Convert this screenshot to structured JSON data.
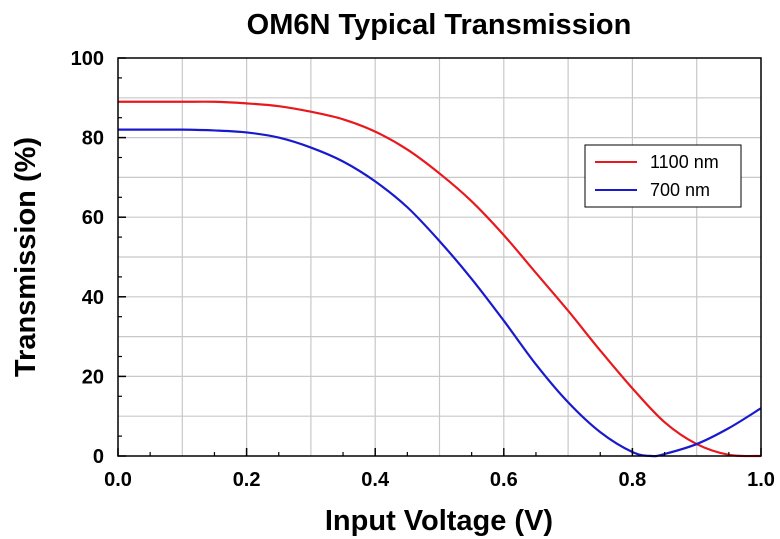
{
  "chart_data": {
    "type": "line",
    "title": "OM6N Typical Transmission",
    "xlabel": "Input Voltage (V)",
    "ylabel": "Transmission (%)",
    "xlim": [
      0.0,
      1.0
    ],
    "ylim": [
      0,
      100
    ],
    "xticks": [
      "0.0",
      "0.2",
      "0.4",
      "0.6",
      "0.8",
      "1.0"
    ],
    "yticks": [
      "0",
      "20",
      "40",
      "60",
      "80",
      "100"
    ],
    "grid": true,
    "legend_position": "right",
    "series": [
      {
        "name": "1100 nm",
        "color": "#e8191e",
        "x": [
          0.0,
          0.05,
          0.1,
          0.15,
          0.2,
          0.25,
          0.3,
          0.35,
          0.4,
          0.45,
          0.5,
          0.55,
          0.6,
          0.65,
          0.7,
          0.75,
          0.8,
          0.85,
          0.9,
          0.95,
          1.0
        ],
        "y": [
          89,
          89,
          89,
          89,
          88.6,
          87.9,
          86.5,
          84.6,
          81.5,
          77.0,
          71.0,
          64.0,
          55.5,
          46.0,
          36.5,
          26.5,
          17.0,
          8.5,
          3.0,
          0.3,
          0
        ]
      },
      {
        "name": "700 nm",
        "color": "#1a1acd",
        "x": [
          0.0,
          0.05,
          0.1,
          0.15,
          0.2,
          0.25,
          0.3,
          0.35,
          0.4,
          0.45,
          0.5,
          0.55,
          0.6,
          0.65,
          0.7,
          0.75,
          0.8,
          0.83,
          0.85,
          0.9,
          0.95,
          1.0
        ],
        "y": [
          82,
          82,
          82,
          81.8,
          81.3,
          80.0,
          77.5,
          74.0,
          69.0,
          62.5,
          54.0,
          44.5,
          34.0,
          23.0,
          13.5,
          6.0,
          1.0,
          0,
          0.5,
          3.0,
          7.0,
          12.0
        ]
      }
    ]
  }
}
